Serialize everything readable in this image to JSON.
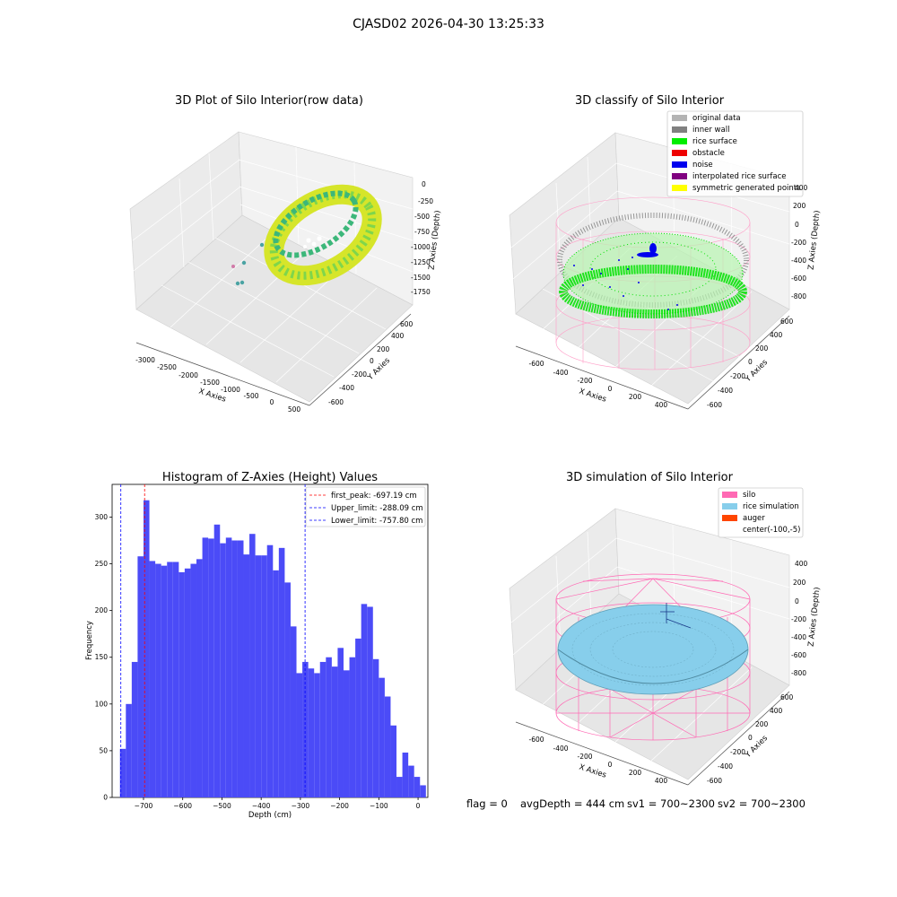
{
  "figure": {
    "suptitle": "CJASD02 2026-04-30 13:25:33",
    "footer": {
      "flag": "flag = 0",
      "avg": "avgDepth = 444 cm",
      "sv1": "sv1 = 700~2300",
      "sv2": "sv2 = 700~2300"
    }
  },
  "panels": {
    "raw": {
      "title": "3D Plot of Silo Interior(row data)",
      "xlabel": "X Axies",
      "ylabel": "Y Axies",
      "zlabel": "Z Axies (Depth)",
      "xticks": [
        "-3000",
        "-2500",
        "-2000",
        "-1500",
        "-1000",
        "-500",
        "0",
        "500"
      ],
      "yticks": [
        "-600",
        "-400",
        "-200",
        "0",
        "200",
        "400",
        "600"
      ],
      "zticks": [
        "0",
        "-250",
        "-500",
        "-750",
        "-1000",
        "-1250",
        "-1500",
        "-1750"
      ]
    },
    "classify": {
      "title": "3D classify of Silo Interior",
      "xlabel": "X Axies",
      "ylabel": "Y Axies",
      "zlabel": "Z Axies (Depth)",
      "xticks": [
        "-600",
        "-400",
        "-200",
        "0",
        "200",
        "400"
      ],
      "yticks": [
        "-600",
        "-400",
        "-200",
        "0",
        "200",
        "400",
        "600"
      ],
      "zticks": [
        "400",
        "200",
        "0",
        "-200",
        "-400",
        "-600",
        "-800"
      ],
      "legend": [
        {
          "label": "original data",
          "color": "#b3b3b3"
        },
        {
          "label": "inner wall",
          "color": "#808080"
        },
        {
          "label": "rice surface",
          "color": "#00ee00"
        },
        {
          "label": "obstacle",
          "color": "#ee0000"
        },
        {
          "label": "noise",
          "color": "#0000ee"
        },
        {
          "label": "interpolated rice surface",
          "color": "#800080"
        },
        {
          "label": "symmetric generated points",
          "color": "#ffff00"
        }
      ]
    },
    "simulation": {
      "title": "3D simulation of Silo Interior",
      "xlabel": "X Axies",
      "ylabel": "Y Axies",
      "zlabel": "Z Axies (Depth)",
      "xticks": [
        "-600",
        "-400",
        "-200",
        "0",
        "200",
        "400"
      ],
      "yticks": [
        "-600",
        "-400",
        "-200",
        "0",
        "200",
        "400",
        "600"
      ],
      "zticks": [
        "400",
        "200",
        "0",
        "-200",
        "-400",
        "-600",
        "-800"
      ],
      "legend": [
        {
          "label": "silo",
          "color": "#ff69b4"
        },
        {
          "label": "rice simulation",
          "color": "#87ceeb"
        },
        {
          "label": "auger",
          "color": "#ff4500"
        },
        {
          "label": "center(-100,-5)",
          "color": "none"
        }
      ]
    }
  },
  "chart_data": {
    "type": "bar",
    "title": "Histogram of Z-Axies (Height) Values",
    "xlabel": "Depth (cm)",
    "ylabel": "Frequency",
    "xlim": [
      -780,
      25
    ],
    "ylim": [
      0,
      335
    ],
    "bin_start": -760,
    "bin_width": 15,
    "values": [
      52,
      100,
      145,
      258,
      318,
      253,
      250,
      248,
      252,
      252,
      241,
      245,
      250,
      255,
      278,
      277,
      292,
      272,
      278,
      275,
      275,
      260,
      282,
      259,
      259,
      270,
      243,
      267,
      230,
      183,
      133,
      145,
      138,
      133,
      145,
      150,
      140,
      160,
      136,
      150,
      170,
      207,
      204,
      148,
      128,
      108,
      77,
      22,
      48,
      34,
      22,
      13
    ],
    "xticks": [
      -700,
      -600,
      -500,
      -400,
      -300,
      -200,
      -100,
      0
    ],
    "xtick_labels": [
      "−700",
      "−600",
      "−500",
      "−400",
      "−300",
      "−200",
      "−100",
      "0"
    ],
    "yticks": [
      0,
      50,
      100,
      150,
      200,
      250,
      300
    ],
    "bar_color": "#4b4bf7",
    "lines": [
      {
        "label": "first_peak: -697.19 cm",
        "x": -697.19,
        "color": "#ff0000"
      },
      {
        "label": "Upper_limit: -288.09 cm",
        "x": -288.09,
        "color": "#0000ff"
      },
      {
        "label": "Lower_limit: -757.80 cm",
        "x": -757.8,
        "color": "#0000ff"
      }
    ],
    "legend_position": "upper right"
  }
}
